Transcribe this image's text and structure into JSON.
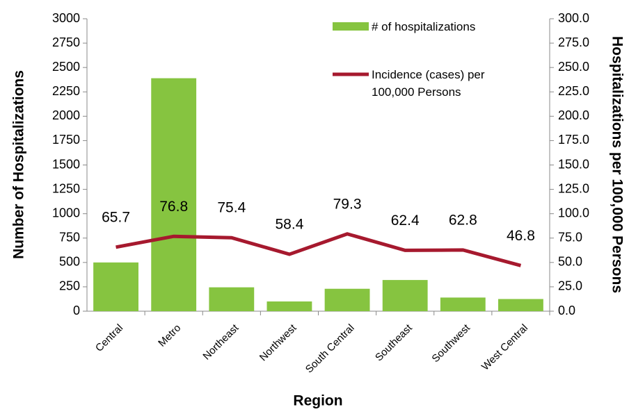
{
  "chart_data": {
    "type": "bar-line",
    "categories": [
      "Central",
      "Metro",
      "Northeast",
      "Northwest",
      "South Central",
      "Southeast",
      "Southwest",
      "West Central"
    ],
    "x_label": "Region",
    "y_label": "Number of Hospitalizations",
    "y2_label": "Hospitalizations per 100,000 Persons",
    "ylim": [
      0,
      3000
    ],
    "yticks": [
      0,
      250,
      500,
      750,
      1000,
      1250,
      1500,
      1750,
      2000,
      2250,
      2500,
      2750,
      3000
    ],
    "y2lim": [
      0,
      300
    ],
    "y2ticks": [
      {
        "value": 0,
        "label": "0.0"
      },
      {
        "value": 25,
        "label": "25.0"
      },
      {
        "value": 50,
        "label": "50.0"
      },
      {
        "value": 75,
        "label": "75.0"
      },
      {
        "value": 100,
        "label": "100.0"
      },
      {
        "value": 125,
        "label": "125.0"
      },
      {
        "value": 150,
        "label": "150.0"
      },
      {
        "value": 175,
        "label": "175.0"
      },
      {
        "value": 200,
        "label": "200.0"
      },
      {
        "value": 225,
        "label": "225.0"
      },
      {
        "value": 250,
        "label": "250.0"
      },
      {
        "value": 275,
        "label": "275.0"
      },
      {
        "value": 300,
        "label": "300.0"
      }
    ],
    "legend": "upper right",
    "series": [
      {
        "name": "# of hospitalizations",
        "kind": "bar",
        "color": "#86c440",
        "values": [
          500,
          2390,
          245,
          100,
          230,
          320,
          140,
          125
        ]
      },
      {
        "name": "Incidence (cases) per 100,000 Persons",
        "kind": "line",
        "axis": "y2",
        "color": "#a6192e",
        "values": [
          65.7,
          76.8,
          75.4,
          58.4,
          79.3,
          62.4,
          62.8,
          46.8
        ],
        "data_labels": true
      }
    ]
  }
}
